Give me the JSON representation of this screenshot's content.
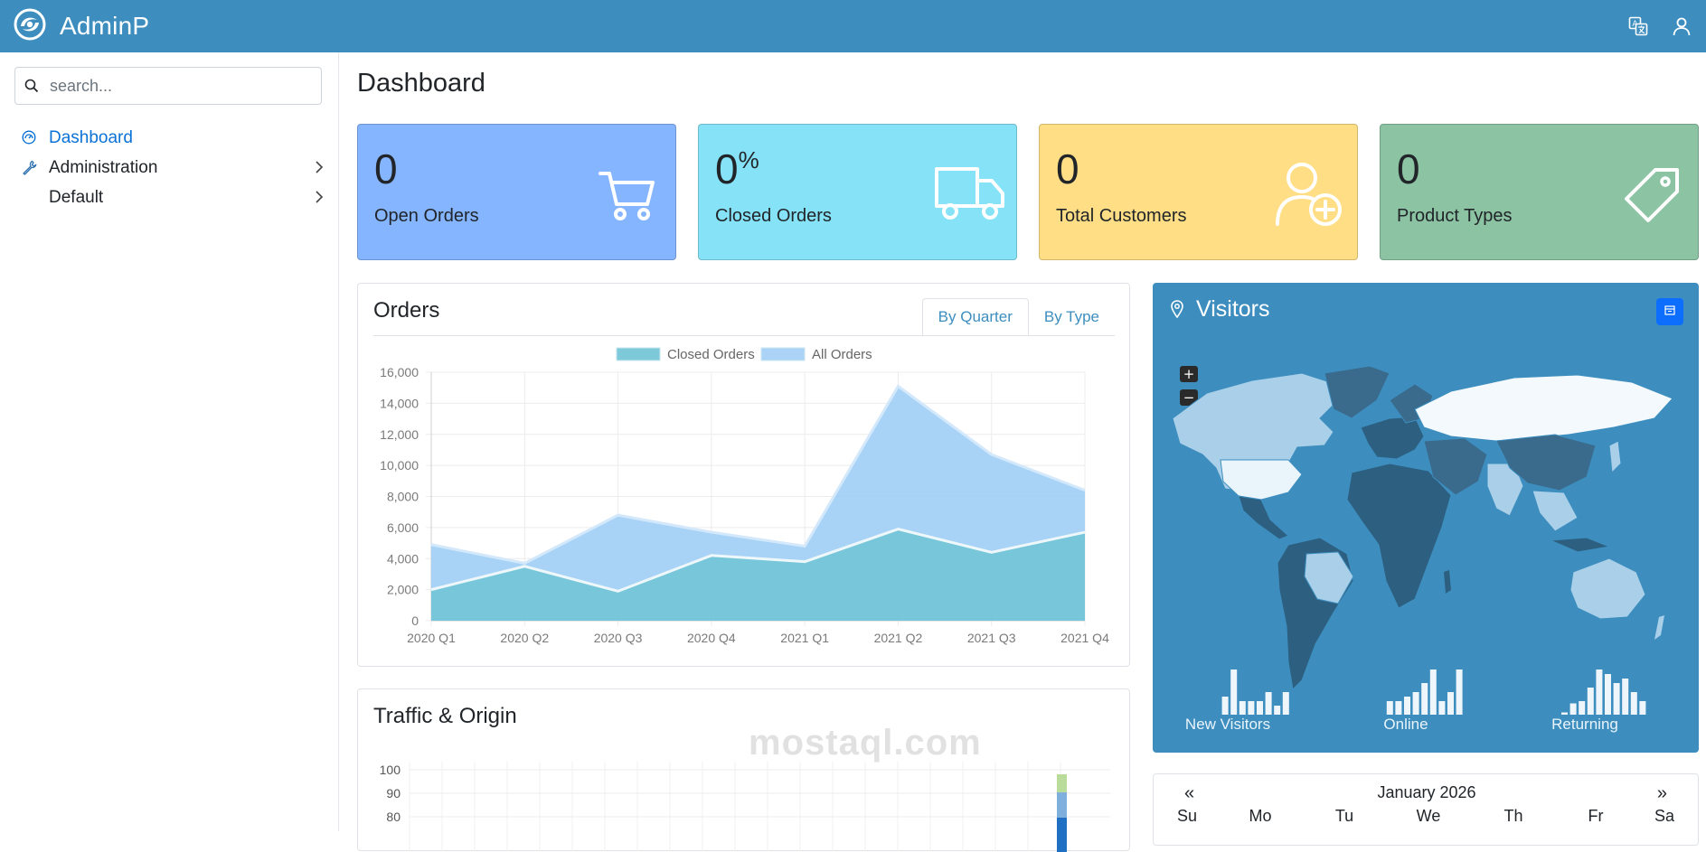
{
  "app": {
    "title": "AdminP"
  },
  "header": {
    "actions": [
      "translate-icon",
      "user-icon"
    ]
  },
  "sidebar": {
    "search": {
      "placeholder": "search...",
      "value": ""
    },
    "items": [
      {
        "label": "Dashboard",
        "icon": "gauge-icon",
        "active": true,
        "has_children": false
      },
      {
        "label": "Administration",
        "icon": "wrench-icon",
        "active": false,
        "has_children": true
      },
      {
        "label": "Default",
        "icon": "",
        "active": false,
        "has_children": true
      }
    ]
  },
  "main": {
    "title": "Dashboard",
    "stats": [
      {
        "value": "0",
        "suffix": "",
        "label": "Open Orders",
        "icon": "cart-icon",
        "color": "#85b5ff"
      },
      {
        "value": "0",
        "suffix": "%",
        "label": "Closed Orders",
        "icon": "truck-icon",
        "color": "#86e3f7"
      },
      {
        "value": "0",
        "suffix": "",
        "label": "Total Customers",
        "icon": "user-plus-icon",
        "color": "#ffde85"
      },
      {
        "value": "0",
        "suffix": "",
        "label": "Product Types",
        "icon": "tag-icon",
        "color": "#8bc3a3"
      }
    ]
  },
  "orders": {
    "title": "Orders",
    "tabs": [
      {
        "label": "By Quarter",
        "active": true
      },
      {
        "label": "By Type",
        "active": false
      }
    ]
  },
  "chart_data": {
    "type": "area",
    "categories": [
      "2020 Q1",
      "2020 Q2",
      "2020 Q3",
      "2020 Q4",
      "2021 Q1",
      "2021 Q2",
      "2021 Q3",
      "2021 Q4"
    ],
    "series": [
      {
        "name": "Closed Orders",
        "values": [
          2000,
          3500,
          1900,
          4200,
          3800,
          5900,
          4400,
          5700
        ],
        "color": "#7dc9da"
      },
      {
        "name": "All Orders",
        "values": [
          4900,
          3700,
          6800,
          5700,
          4800,
          15100,
          10700,
          8400
        ],
        "color": "#abd3f6"
      }
    ],
    "yticks": [
      "0",
      "2,000",
      "4,000",
      "6,000",
      "8,000",
      "10,000",
      "12,000",
      "14,000",
      "16,000"
    ],
    "ylim": [
      0,
      16000
    ],
    "grid": true,
    "legend": "top"
  },
  "visitors": {
    "title": "Visitors",
    "sparklines": [
      {
        "label": "New Visitors",
        "values": [
          40,
          100,
          30,
          30,
          30,
          50,
          20,
          50
        ]
      },
      {
        "label": "Online",
        "values": [
          30,
          30,
          40,
          50,
          70,
          100,
          30,
          50,
          100
        ]
      },
      {
        "label": "Returning",
        "values": [
          5,
          25,
          30,
          60,
          100,
          90,
          70,
          80,
          50,
          30
        ]
      }
    ]
  },
  "traffic": {
    "title": "Traffic & Origin",
    "yticks": [
      "100",
      "90",
      "80"
    ]
  },
  "calendar": {
    "prev": "«",
    "next": "»",
    "month": "January 2026",
    "weekdays": [
      "Su",
      "Mo",
      "Tu",
      "We",
      "Th",
      "Fr",
      "Sa"
    ]
  },
  "watermark": "mostaql.com"
}
